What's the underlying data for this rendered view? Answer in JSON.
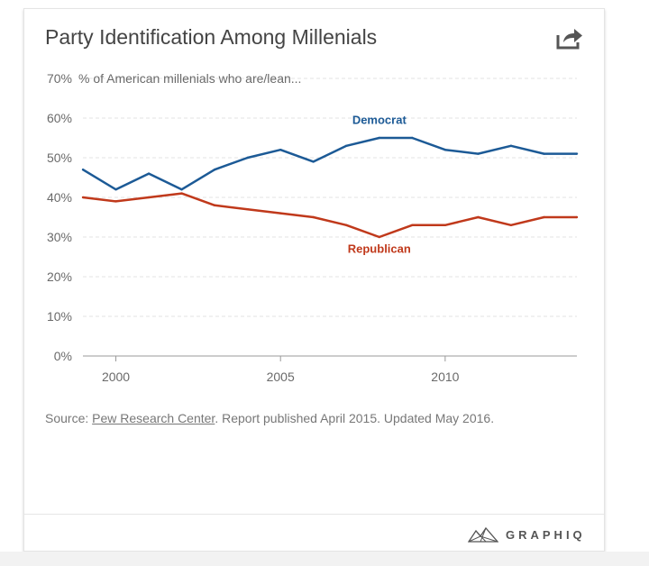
{
  "card": {
    "title": "Party Identification Among Millenials",
    "share_icon": "share-icon"
  },
  "chart_data": {
    "type": "line",
    "title": "Party Identification Among Millenials",
    "ylabel": "% of American millenials who are/lean...",
    "xlabel": "",
    "x": [
      1999,
      2000,
      2001,
      2002,
      2003,
      2004,
      2005,
      2006,
      2007,
      2008,
      2009,
      2010,
      2011,
      2012,
      2013,
      2014
    ],
    "xlim": [
      1999,
      2014
    ],
    "ylim": [
      0,
      70
    ],
    "grid": true,
    "y_ticks": [
      0,
      10,
      20,
      30,
      40,
      50,
      60,
      70
    ],
    "y_tick_labels": [
      "0%",
      "10%",
      "20%",
      "30%",
      "40%",
      "50%",
      "60%",
      "70%"
    ],
    "x_ticks": [
      2000,
      2005,
      2010
    ],
    "x_tick_labels": [
      "2000",
      "2005",
      "2010"
    ],
    "series": [
      {
        "name": "Democrat",
        "color": "#1c5a96",
        "values": [
          47,
          42,
          46,
          42,
          47,
          50,
          52,
          49,
          53,
          55,
          55,
          52,
          51,
          53,
          51,
          51
        ],
        "label_at": [
          2008,
          58.5
        ]
      },
      {
        "name": "Republican",
        "color": "#c0391b",
        "values": [
          40,
          39,
          40,
          41,
          38,
          37,
          36,
          35,
          33,
          30,
          33,
          33,
          35,
          33,
          35,
          35
        ],
        "label_at": [
          2008,
          26
        ]
      }
    ]
  },
  "source": {
    "prefix": "Source: ",
    "link": "Pew Research Center",
    "suffix": ". Report published April 2015. Updated May 2016."
  },
  "brand": {
    "name": "GRAPHIQ",
    "logo_icon": "graphiq-logo-icon"
  }
}
